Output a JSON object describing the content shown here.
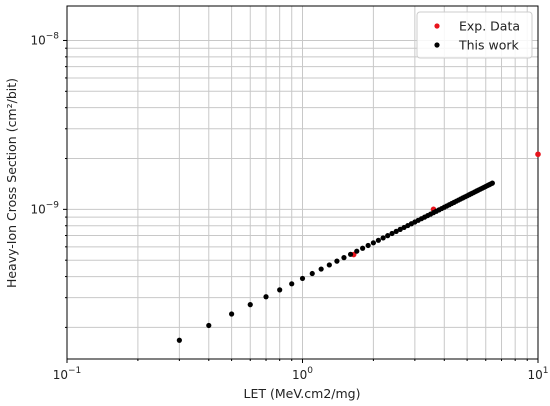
{
  "chart_data": {
    "type": "scatter",
    "title": "",
    "xlabel": "LET (MeV.cm2/mg)",
    "ylabel": "Heavy-Ion Cross Section (cm²/bit)",
    "xscale": "log",
    "yscale": "log",
    "xlim": [
      0.1,
      10
    ],
    "ylim": [
      1.3e-10,
      1.6e-08
    ],
    "grid": "major and minor",
    "legend_position": "top-right",
    "x_ticks": [
      {
        "value": 0.1,
        "base": "10",
        "exp": "−1"
      },
      {
        "value": 1,
        "base": "10",
        "exp": "0"
      },
      {
        "value": 10,
        "base": "10",
        "exp": "1"
      }
    ],
    "y_ticks": [
      {
        "value": 1e-09,
        "base": "10",
        "exp": "−9"
      },
      {
        "value": 1e-08,
        "base": "10",
        "exp": "−8"
      }
    ],
    "series": [
      {
        "name": "Exp. Data",
        "color": "#e8141c",
        "points": [
          [
            1.65,
            5.4e-10
          ],
          [
            3.6,
            1e-09
          ],
          [
            10.0,
            2.12e-09
          ]
        ]
      },
      {
        "name": "This work",
        "color": "#000000",
        "x": [
          0.3,
          0.4,
          0.5,
          0.6,
          0.7,
          0.8,
          0.9,
          1.0,
          1.1,
          1.2,
          1.3,
          1.4,
          1.5,
          1.6,
          1.7,
          1.8,
          1.9,
          2.0,
          2.1,
          2.2,
          2.3,
          2.4,
          2.5,
          2.6,
          2.7,
          2.8,
          2.9,
          3.0,
          3.1,
          3.2,
          3.3,
          3.4,
          3.5,
          3.6,
          3.7,
          3.8,
          3.9,
          4.0,
          4.1,
          4.2,
          4.3,
          4.4,
          4.5,
          4.6,
          4.7,
          4.8,
          4.9,
          5.0,
          5.1,
          5.2,
          5.3,
          5.4,
          5.5,
          5.6,
          5.7,
          5.8,
          5.9,
          6.0,
          6.1,
          6.2,
          6.3,
          6.4
        ]
      }
    ]
  }
}
